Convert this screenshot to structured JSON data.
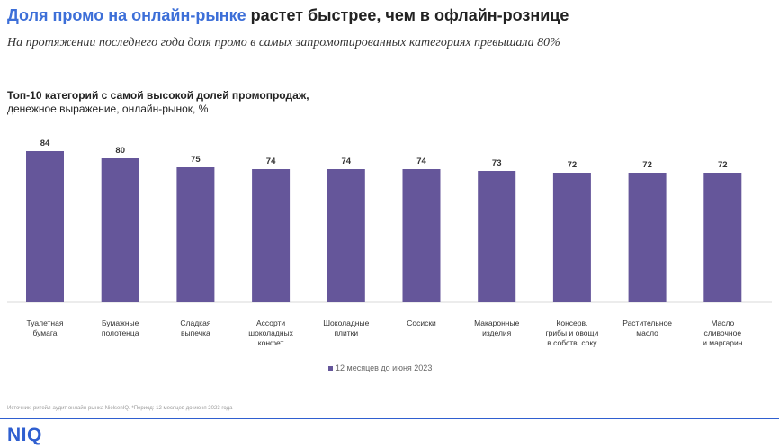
{
  "header": {
    "title_accent": "Доля промо на онлайн-рынке",
    "title_rest": " растет быстрее, чем в офлайн-рознице",
    "subtitle": "На протяжении последнего года доля промо в самых запромотированных категориях превышала 80%"
  },
  "chart_heading": {
    "title": "Топ-10 категорий с самой высокой долей промопродаж,",
    "subtitle": "денежное выражение, онлайн-рынок, %"
  },
  "chart_data": {
    "type": "bar",
    "categories": [
      [
        "Туалетная",
        "бумага"
      ],
      [
        "Бумажные",
        "полотенца"
      ],
      [
        "Сладкая",
        "выпечка"
      ],
      [
        "Ассорти",
        "шоколадных",
        "конфет"
      ],
      [
        "Шоколадные",
        "плитки"
      ],
      [
        "Сосиски"
      ],
      [
        "Макаронные",
        "изделия"
      ],
      [
        "Консерв.",
        "грибы и овощи",
        "в собств. соку"
      ],
      [
        "Растительное",
        "масло"
      ],
      [
        "Масло",
        "сливочное",
        "и маргарин"
      ]
    ],
    "series": [
      {
        "name": "12 месяцев до июня 2023",
        "values": [
          84,
          80,
          75,
          74,
          74,
          74,
          73,
          72,
          72,
          72
        ]
      }
    ],
    "ylim": [
      0,
      84
    ],
    "bar_color": "#65569a",
    "grid": false,
    "legend_position": "bottom-center"
  },
  "legend": {
    "label": "12 месяцев до июня 2023"
  },
  "footnote": "Источник: ритейл-аудит онлайн-рынка NielsenIQ. *Период: 12 месяцев до июня 2023 года",
  "brand": {
    "logo_text": "NIQ",
    "color": "#2f5fd0"
  }
}
